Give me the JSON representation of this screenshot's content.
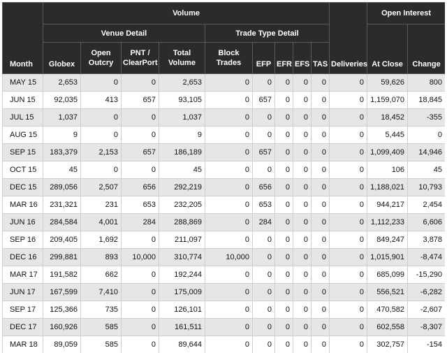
{
  "header": {
    "volume": "Volume",
    "open_interest": "Open Interest",
    "venue_detail": "Venue Detail",
    "trade_type_detail": "Trade Type Detail",
    "columns": {
      "month": "Month",
      "globex": "Globex",
      "open_outcry": "Open Outcry",
      "pnt_clearport": "PNT / ClearPort",
      "total_volume": "Total Volume",
      "block_trades": "Block Trades",
      "efp": "EFP",
      "efr": "EFR",
      "efs": "EFS",
      "tas": "TAS",
      "deliveries": "Deliveries",
      "at_close": "At Close",
      "change": "Change"
    }
  },
  "rows": [
    {
      "month": "MAY 15",
      "globex": "2,653",
      "open_outcry": "0",
      "pnt_clearport": "0",
      "total_volume": "2,653",
      "block_trades": "0",
      "efp": "0",
      "efr": "0",
      "efs": "0",
      "tas": "0",
      "deliveries": "0",
      "at_close": "59,626",
      "change": "800"
    },
    {
      "month": "JUN 15",
      "globex": "92,035",
      "open_outcry": "413",
      "pnt_clearport": "657",
      "total_volume": "93,105",
      "block_trades": "0",
      "efp": "657",
      "efr": "0",
      "efs": "0",
      "tas": "0",
      "deliveries": "0",
      "at_close": "1,159,070",
      "change": "18,845"
    },
    {
      "month": "JUL 15",
      "globex": "1,037",
      "open_outcry": "0",
      "pnt_clearport": "0",
      "total_volume": "1,037",
      "block_trades": "0",
      "efp": "0",
      "efr": "0",
      "efs": "0",
      "tas": "0",
      "deliveries": "0",
      "at_close": "18,452",
      "change": "-355"
    },
    {
      "month": "AUG 15",
      "globex": "9",
      "open_outcry": "0",
      "pnt_clearport": "0",
      "total_volume": "9",
      "block_trades": "0",
      "efp": "0",
      "efr": "0",
      "efs": "0",
      "tas": "0",
      "deliveries": "0",
      "at_close": "5,445",
      "change": "0"
    },
    {
      "month": "SEP 15",
      "globex": "183,379",
      "open_outcry": "2,153",
      "pnt_clearport": "657",
      "total_volume": "186,189",
      "block_trades": "0",
      "efp": "657",
      "efr": "0",
      "efs": "0",
      "tas": "0",
      "deliveries": "0",
      "at_close": "1,099,409",
      "change": "14,946"
    },
    {
      "month": "OCT 15",
      "globex": "45",
      "open_outcry": "0",
      "pnt_clearport": "0",
      "total_volume": "45",
      "block_trades": "0",
      "efp": "0",
      "efr": "0",
      "efs": "0",
      "tas": "0",
      "deliveries": "0",
      "at_close": "106",
      "change": "45"
    },
    {
      "month": "DEC 15",
      "globex": "289,056",
      "open_outcry": "2,507",
      "pnt_clearport": "656",
      "total_volume": "292,219",
      "block_trades": "0",
      "efp": "656",
      "efr": "0",
      "efs": "0",
      "tas": "0",
      "deliveries": "0",
      "at_close": "1,188,021",
      "change": "10,793"
    },
    {
      "month": "MAR 16",
      "globex": "231,321",
      "open_outcry": "231",
      "pnt_clearport": "653",
      "total_volume": "232,205",
      "block_trades": "0",
      "efp": "653",
      "efr": "0",
      "efs": "0",
      "tas": "0",
      "deliveries": "0",
      "at_close": "944,217",
      "change": "2,454"
    },
    {
      "month": "JUN 16",
      "globex": "284,584",
      "open_outcry": "4,001",
      "pnt_clearport": "284",
      "total_volume": "288,869",
      "block_trades": "0",
      "efp": "284",
      "efr": "0",
      "efs": "0",
      "tas": "0",
      "deliveries": "0",
      "at_close": "1,112,233",
      "change": "6,606"
    },
    {
      "month": "SEP 16",
      "globex": "209,405",
      "open_outcry": "1,692",
      "pnt_clearport": "0",
      "total_volume": "211,097",
      "block_trades": "0",
      "efp": "0",
      "efr": "0",
      "efs": "0",
      "tas": "0",
      "deliveries": "0",
      "at_close": "849,247",
      "change": "3,878"
    },
    {
      "month": "DEC 16",
      "globex": "299,881",
      "open_outcry": "893",
      "pnt_clearport": "10,000",
      "total_volume": "310,774",
      "block_trades": "10,000",
      "efp": "0",
      "efr": "0",
      "efs": "0",
      "tas": "0",
      "deliveries": "0",
      "at_close": "1,015,901",
      "change": "-8,474"
    },
    {
      "month": "MAR 17",
      "globex": "191,582",
      "open_outcry": "662",
      "pnt_clearport": "0",
      "total_volume": "192,244",
      "block_trades": "0",
      "efp": "0",
      "efr": "0",
      "efs": "0",
      "tas": "0",
      "deliveries": "0",
      "at_close": "685,099",
      "change": "-15,290"
    },
    {
      "month": "JUN 17",
      "globex": "167,599",
      "open_outcry": "7,410",
      "pnt_clearport": "0",
      "total_volume": "175,009",
      "block_trades": "0",
      "efp": "0",
      "efr": "0",
      "efs": "0",
      "tas": "0",
      "deliveries": "0",
      "at_close": "556,521",
      "change": "-6,282"
    },
    {
      "month": "SEP 17",
      "globex": "125,366",
      "open_outcry": "735",
      "pnt_clearport": "0",
      "total_volume": "126,101",
      "block_trades": "0",
      "efp": "0",
      "efr": "0",
      "efs": "0",
      "tas": "0",
      "deliveries": "0",
      "at_close": "470,582",
      "change": "-2,607"
    },
    {
      "month": "DEC 17",
      "globex": "160,926",
      "open_outcry": "585",
      "pnt_clearport": "0",
      "total_volume": "161,511",
      "block_trades": "0",
      "efp": "0",
      "efr": "0",
      "efs": "0",
      "tas": "0",
      "deliveries": "0",
      "at_close": "602,558",
      "change": "-8,307"
    },
    {
      "month": "MAR 18",
      "globex": "89,059",
      "open_outcry": "585",
      "pnt_clearport": "0",
      "total_volume": "89,644",
      "block_trades": "0",
      "efp": "0",
      "efr": "0",
      "efs": "0",
      "tas": "0",
      "deliveries": "0",
      "at_close": "302,757",
      "change": "-154"
    }
  ]
}
